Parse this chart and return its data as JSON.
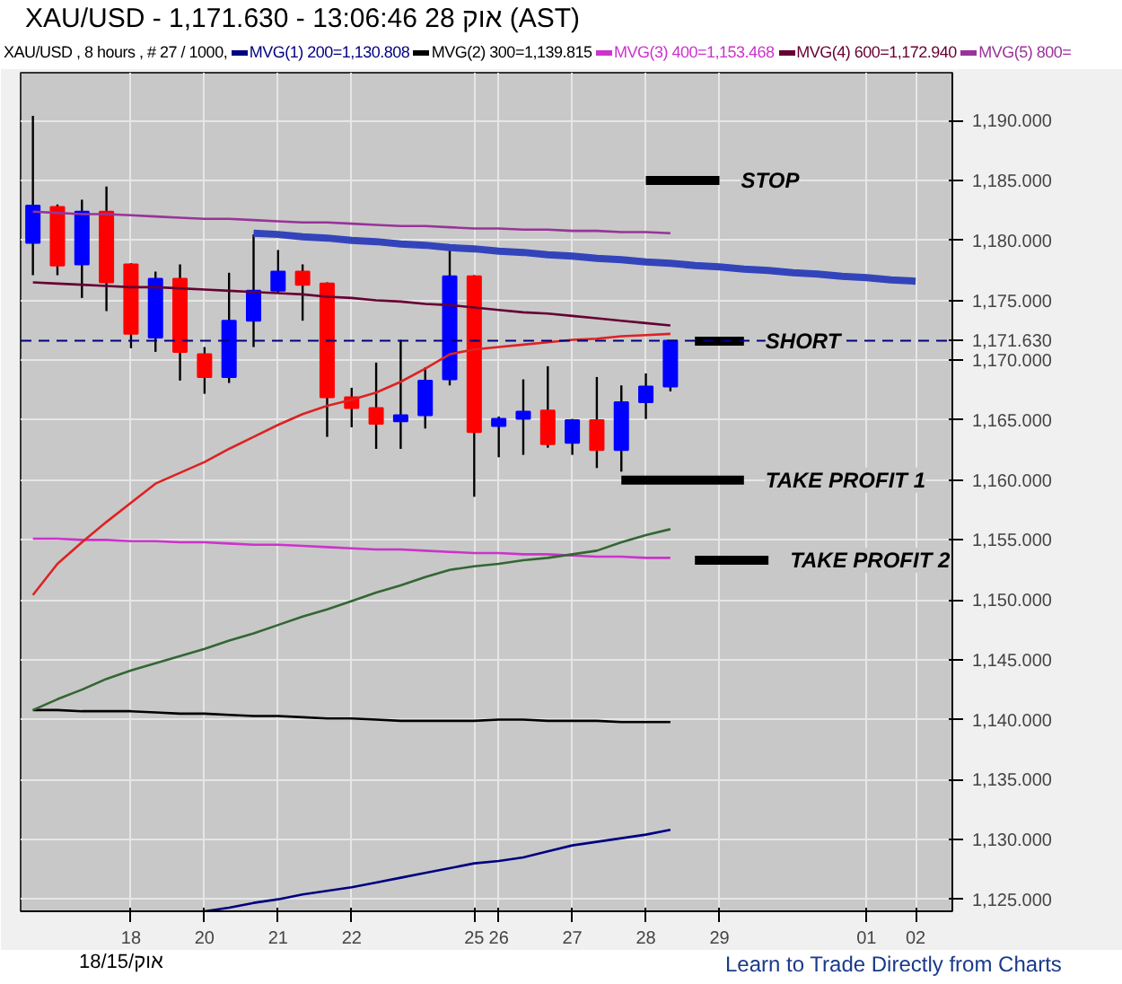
{
  "chart_data": {
    "type": "candlestick",
    "title": "XAU/USD - 1,171.630 - 13:06:46 28 אוק (AST)",
    "subtitle": "XAU/USD , 8 hours , # 27 / 1000,",
    "categories": [
      null,
      null,
      null,
      null,
      "18",
      null,
      null,
      "20",
      null,
      null,
      "21",
      null,
      null,
      "22",
      null,
      null,
      null,
      null,
      "25",
      "26",
      null,
      null,
      "27",
      null,
      null,
      "28",
      null,
      null,
      "29",
      null,
      null,
      null,
      null,
      null,
      "01",
      null,
      "02",
      null
    ],
    "ohlc": [
      [
        1179.8,
        1190.4,
        1177.1,
        1182.9
      ],
      [
        1182.8,
        1183.0,
        1177.1,
        1177.9
      ],
      [
        1178.0,
        1183.4,
        1175.2,
        1182.4
      ],
      [
        1182.4,
        1184.5,
        1174.1,
        1176.5
      ],
      [
        1178.0,
        1178.1,
        1171.0,
        1172.2
      ],
      [
        1171.9,
        1177.4,
        1170.7,
        1176.8
      ],
      [
        1176.8,
        1178.0,
        1168.3,
        1170.7
      ],
      [
        1170.5,
        1171.1,
        1167.2,
        1168.6
      ],
      [
        1168.6,
        1177.3,
        1168.1,
        1173.3
      ],
      [
        1173.3,
        1180.5,
        1171.1,
        1175.8
      ],
      [
        1175.8,
        1179.2,
        1175.6,
        1177.4
      ],
      [
        1177.4,
        1178.0,
        1173.3,
        1176.3
      ],
      [
        1176.4,
        1176.5,
        1163.6,
        1166.9
      ],
      [
        1166.9,
        1167.7,
        1164.4,
        1166.0
      ],
      [
        1166.0,
        1169.8,
        1162.6,
        1164.7
      ],
      [
        1164.9,
        1171.7,
        1162.6,
        1165.4
      ],
      [
        1165.4,
        1169.4,
        1164.3,
        1168.3
      ],
      [
        1168.4,
        1179.2,
        1167.9,
        1177.0
      ],
      [
        1177.0,
        1177.1,
        1158.6,
        1164.0
      ],
      [
        1164.5,
        1165.3,
        1161.9,
        1165.1
      ],
      [
        1165.1,
        1168.4,
        1162.1,
        1165.7
      ],
      [
        1165.8,
        1169.5,
        1162.7,
        1163.0
      ],
      [
        1163.1,
        1165.1,
        1162.1,
        1165.0
      ],
      [
        1165.0,
        1168.6,
        1161.0,
        1162.5
      ],
      [
        1162.5,
        1167.9,
        1160.7,
        1166.5
      ],
      [
        1166.5,
        1168.9,
        1165.1,
        1167.8
      ],
      [
        1167.8,
        1171.63,
        1167.4,
        1171.63
      ],
      null,
      null,
      null,
      null,
      null,
      null,
      null,
      null,
      null,
      null,
      null
    ],
    "colors": [
      "#0000ff",
      "#ff0000",
      "#0000ff",
      "#ff0000",
      "#ff0000",
      "#0000ff",
      "#ff0000",
      "#ff0000",
      "#0000ff",
      "#0000ff",
      "#0000ff",
      "#ff0000",
      "#ff0000",
      "#ff0000",
      "#ff0000",
      "#0000ff",
      "#0000ff",
      "#0000ff",
      "#ff0000",
      "#0000ff",
      "#0000ff",
      "#ff0000",
      "#0000ff",
      "#ff0000",
      "#0000ff",
      "#0000ff",
      "#0000ff",
      null,
      null,
      null,
      null,
      null,
      null,
      null,
      null,
      null,
      null,
      null
    ],
    "series": [
      {
        "type": "line",
        "name": "MVG(1) 200=1,130.808",
        "color": "#000080",
        "values": [
          null,
          null,
          null,
          null,
          null,
          null,
          null,
          1124.0,
          1124.3,
          1124.7,
          1125.0,
          1125.4,
          1125.7,
          1126.0,
          1126.4,
          1126.8,
          1127.2,
          1127.6,
          1128.0,
          1128.2,
          1128.5,
          1129.0,
          1129.5,
          1129.8,
          1130.1,
          1130.4,
          1130.8,
          null,
          null,
          null,
          null,
          null,
          null,
          null,
          null,
          null,
          null,
          null
        ]
      },
      {
        "type": "line",
        "name": "MVG(2) 300=1,139.815",
        "color": "#000000",
        "values": [
          1140.8,
          1140.8,
          1140.7,
          1140.7,
          1140.7,
          1140.6,
          1140.5,
          1140.5,
          1140.4,
          1140.3,
          1140.3,
          1140.2,
          1140.1,
          1140.1,
          1140.0,
          1139.9,
          1139.9,
          1139.9,
          1139.9,
          1140.0,
          1140.0,
          1139.9,
          1139.9,
          1139.9,
          1139.8,
          1139.8,
          1139.8,
          null,
          null,
          null,
          null,
          null,
          null,
          null,
          null,
          null,
          null,
          null
        ]
      },
      {
        "type": "line",
        "name": "MVG(3) 400=1,153.468",
        "color": "#cc33cc",
        "values": [
          1155.1,
          1155.1,
          1155.0,
          1155.0,
          1154.9,
          1154.9,
          1154.8,
          1154.8,
          1154.7,
          1154.6,
          1154.6,
          1154.5,
          1154.4,
          1154.3,
          1154.2,
          1154.2,
          1154.1,
          1154.0,
          1153.9,
          1153.9,
          1153.8,
          1153.8,
          1153.7,
          1153.6,
          1153.6,
          1153.5,
          1153.5,
          null,
          null,
          null,
          null,
          null,
          null,
          null,
          null,
          null,
          null,
          null
        ]
      },
      {
        "type": "line",
        "name": "MVG(4) 600=1,172.940",
        "color": "#660033",
        "values": [
          1176.5,
          1176.4,
          1176.3,
          1176.2,
          1176.1,
          1176.1,
          1176.0,
          1175.9,
          1175.8,
          1175.7,
          1175.6,
          1175.5,
          1175.3,
          1175.2,
          1175.0,
          1174.9,
          1174.7,
          1174.6,
          1174.4,
          1174.2,
          1174.0,
          1173.9,
          1173.7,
          1173.5,
          1173.3,
          1173.1,
          1172.9,
          null,
          null,
          null,
          null,
          null,
          null,
          null,
          null,
          null,
          null,
          null
        ]
      },
      {
        "type": "line",
        "name": "MVG(5) 800=",
        "color": "#993399",
        "values": [
          1182.4,
          1182.3,
          1182.2,
          1182.2,
          1182.1,
          1182.0,
          1181.9,
          1181.8,
          1181.8,
          1181.7,
          1181.6,
          1181.5,
          1181.5,
          1181.4,
          1181.3,
          1181.2,
          1181.2,
          1181.1,
          1181.0,
          1181.0,
          1180.9,
          1180.9,
          1180.8,
          1180.8,
          1180.7,
          1180.7,
          1180.6,
          null,
          null,
          null,
          null,
          null,
          null,
          null,
          null,
          null,
          null,
          null
        ]
      },
      {
        "type": "line",
        "color": "#dd2222",
        "values": [
          1150.4,
          1153.0,
          1154.8,
          1156.5,
          1158.1,
          1159.7,
          1160.6,
          1161.5,
          1162.6,
          1163.6,
          1164.6,
          1165.5,
          1166.2,
          1166.7,
          1167.3,
          1168.2,
          1169.3,
          1170.5,
          1170.9,
          1171.1,
          1171.3,
          1171.5,
          1171.7,
          1171.8,
          1172.0,
          1172.1,
          1172.2,
          null,
          null,
          null,
          null,
          null,
          null,
          null,
          null,
          null,
          null,
          null
        ]
      },
      {
        "type": "line",
        "color": "#336633",
        "values": [
          1140.8,
          1141.7,
          1142.5,
          1143.4,
          1144.1,
          1144.7,
          1145.3,
          1145.9,
          1146.6,
          1147.2,
          1147.9,
          1148.6,
          1149.2,
          1149.9,
          1150.6,
          1151.2,
          1151.9,
          1152.5,
          1152.8,
          1153.0,
          1153.3,
          1153.5,
          1153.8,
          1154.1,
          1154.8,
          1155.4,
          1155.9,
          null,
          null,
          null,
          null,
          null,
          null,
          null,
          null,
          null,
          null,
          null
        ]
      },
      {
        "type": "line",
        "color": "#3344bb",
        "values": [
          null,
          null,
          null,
          null,
          null,
          null,
          null,
          null,
          null,
          1180.6,
          1180.5,
          1180.3,
          1180.2,
          1180.0,
          1179.9,
          1179.7,
          1179.6,
          1179.4,
          1179.3,
          1179.1,
          1179.0,
          1178.8,
          1178.7,
          1178.5,
          1178.4,
          1178.2,
          1178.1,
          1177.9,
          1177.8,
          1177.6,
          1177.5,
          1177.3,
          1177.2,
          1177.0,
          1176.9,
          1176.7,
          1176.6,
          null
        ]
      },
      {
        "type": "line",
        "name": "STOP",
        "color": "#000000",
        "values": [
          null,
          null,
          null,
          null,
          null,
          null,
          null,
          null,
          null,
          null,
          null,
          null,
          null,
          null,
          null,
          null,
          null,
          null,
          null,
          null,
          null,
          null,
          null,
          null,
          null,
          1185.0,
          1185.0,
          1185.0,
          1185.0,
          null,
          null,
          null,
          null,
          null,
          null,
          null,
          null,
          null
        ]
      },
      {
        "type": "line",
        "name": "SHORT",
        "color": "#000000",
        "values": [
          null,
          null,
          null,
          null,
          null,
          null,
          null,
          null,
          null,
          null,
          null,
          null,
          null,
          null,
          null,
          null,
          null,
          null,
          null,
          null,
          null,
          null,
          null,
          null,
          null,
          null,
          null,
          1171.6,
          1171.6,
          1171.6,
          null,
          null,
          null,
          null,
          null,
          null,
          null,
          null
        ]
      },
      {
        "type": "line",
        "name": "TAKE PROFIT 1",
        "color": "#000000",
        "values": [
          null,
          null,
          null,
          null,
          null,
          null,
          null,
          null,
          null,
          null,
          null,
          null,
          null,
          null,
          null,
          null,
          null,
          null,
          null,
          null,
          null,
          null,
          null,
          null,
          1160.0,
          1160.0,
          1160.0,
          1160.0,
          1160.0,
          1160.0,
          null,
          null,
          null,
          null,
          null,
          null,
          null,
          null
        ]
      },
      {
        "type": "line",
        "name": "TAKE PROFIT 2",
        "color": "#000000",
        "values": [
          null,
          null,
          null,
          null,
          null,
          null,
          null,
          null,
          null,
          null,
          null,
          null,
          null,
          null,
          null,
          null,
          null,
          null,
          null,
          null,
          null,
          null,
          null,
          null,
          null,
          null,
          null,
          1153.3,
          1153.3,
          1153.3,
          1153.3,
          null,
          null,
          null,
          null,
          null,
          null,
          null
        ]
      }
    ],
    "ref_lines": [
      {
        "axis": "y",
        "value": 1171.63,
        "label": "1,171.630",
        "color": "#000080",
        "line_style": "dashed"
      }
    ],
    "ylim": [
      1124,
      1194
    ],
    "yticks": [
      {
        "value": 1125,
        "label": "1,125.000"
      },
      {
        "value": 1130,
        "label": "1,130.000"
      },
      {
        "value": 1135,
        "label": "1,135.000"
      },
      {
        "value": 1140,
        "label": "1,140.000"
      },
      {
        "value": 1145,
        "label": "1,145.000"
      },
      {
        "value": 1150,
        "label": "1,150.000"
      },
      {
        "value": 1155,
        "label": "1,155.000"
      },
      {
        "value": 1160,
        "label": "1,160.000"
      },
      {
        "value": 1165,
        "label": "1,165.000"
      },
      {
        "value": 1170,
        "label": "1,170.000"
      },
      {
        "value": 1175,
        "label": "1,175.000"
      },
      {
        "value": 1180,
        "label": "1,180.000"
      },
      {
        "value": 1185,
        "label": "1,185.000"
      },
      {
        "value": 1190,
        "label": "1,190.000"
      }
    ],
    "grid": true,
    "legend": "top",
    "annotations": [
      "18/15/אוק",
      "Learn to Trade Directly from Charts"
    ]
  }
}
